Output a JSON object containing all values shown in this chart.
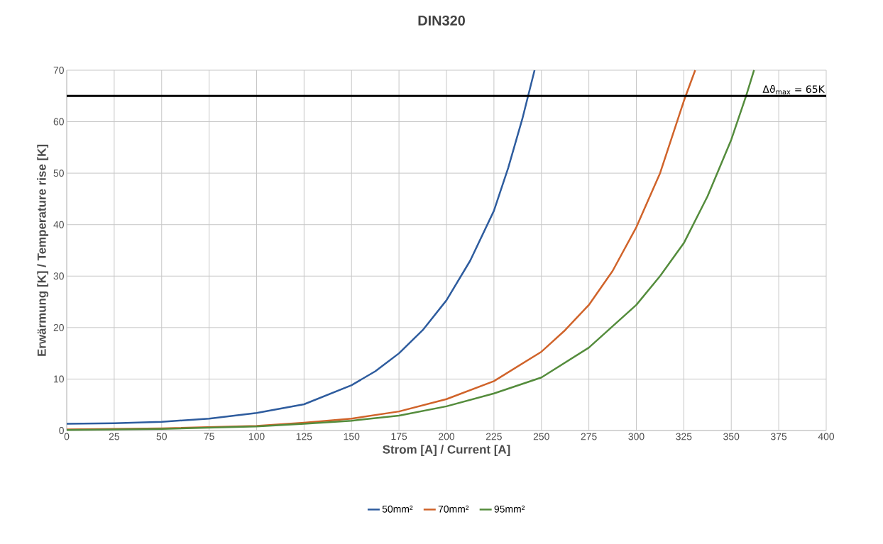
{
  "chart_data": {
    "type": "line",
    "title": "DIN320",
    "xlabel": "Strom [A] / Current [A]",
    "ylabel": "Erwärmung [K] / Temperature rise [K]",
    "xlim": [
      0,
      400
    ],
    "ylim": [
      0,
      70
    ],
    "xticks": [
      0,
      25,
      50,
      75,
      100,
      125,
      150,
      175,
      200,
      225,
      250,
      275,
      300,
      325,
      350,
      375,
      400
    ],
    "yticks": [
      0,
      10,
      20,
      30,
      40,
      50,
      60,
      70
    ],
    "grid": true,
    "legend": "bottom",
    "marker": "none",
    "line_style": "solid",
    "ref_lines": [
      {
        "axis": "y",
        "value": 65,
        "label": "Δϑ$_{max}$ = 65K",
        "color": "#000000"
      }
    ],
    "series": [
      {
        "name": "50mm²",
        "color": "#2e5c9e",
        "x": [
          0,
          25,
          50,
          75,
          100,
          125,
          150,
          162.5,
          175,
          187.5,
          200,
          212.5,
          225,
          232.5,
          240,
          246.4
        ],
        "values": [
          1.3,
          1.4,
          1.7,
          2.3,
          3.4,
          5.1,
          8.8,
          11.5,
          15,
          19.5,
          25.3,
          33,
          42.7,
          51,
          60.6,
          70
        ]
      },
      {
        "name": "70mm²",
        "color": "#d0632a",
        "x": [
          0,
          50,
          100,
          125,
          150,
          175,
          200,
          225,
          250,
          262.5,
          275,
          287.5,
          300,
          312.5,
          325,
          331
        ],
        "values": [
          0.2,
          0.4,
          0.9,
          1.5,
          2.3,
          3.7,
          6.1,
          9.6,
          15.3,
          19.5,
          24.4,
          31,
          39.5,
          50,
          64,
          70
        ]
      },
      {
        "name": "95mm²",
        "color": "#548c3c",
        "x": [
          0,
          50,
          100,
          125,
          150,
          175,
          200,
          225,
          250,
          275,
          300,
          312.5,
          325,
          337.5,
          350,
          357.8,
          362
        ],
        "values": [
          0.1,
          0.3,
          0.8,
          1.3,
          1.9,
          2.9,
          4.7,
          7.2,
          10.3,
          16.1,
          24.4,
          30,
          36.4,
          45.5,
          56.5,
          65,
          70
        ]
      }
    ]
  }
}
